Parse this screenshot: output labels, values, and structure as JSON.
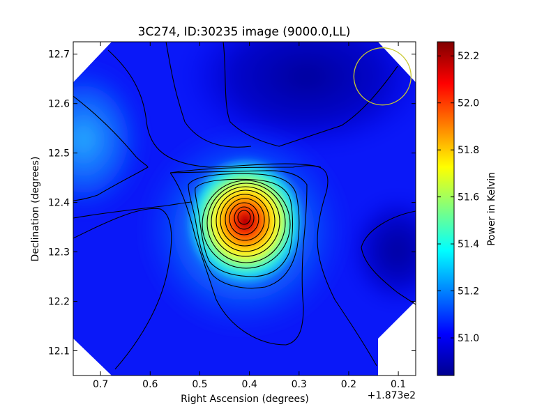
{
  "chart_data": {
    "type": "heatmap",
    "title": "3C274, ID:30235 image (9000.0,LL)",
    "xlabel": "Right Ascension (degrees)",
    "ylabel": "Declination (degrees)",
    "x_offset_label": "+1.873e2",
    "xlim": [
      0.755,
      0.065
    ],
    "ylim": [
      12.05,
      12.725
    ],
    "x_ticks": [
      0.7,
      0.6,
      0.5,
      0.4,
      0.3,
      0.2,
      0.1
    ],
    "x_tick_labels": [
      "0.7",
      "0.6",
      "0.5",
      "0.4",
      "0.3",
      "0.2",
      "0.1"
    ],
    "y_ticks": [
      12.1,
      12.2,
      12.3,
      12.4,
      12.5,
      12.6,
      12.7
    ],
    "y_tick_labels": [
      "12.1",
      "12.2",
      "12.3",
      "12.4",
      "12.5",
      "12.6",
      "12.7"
    ],
    "colorbar": {
      "label": "Power in Kelvin",
      "range": [
        50.84,
        52.26
      ],
      "ticks": [
        51.0,
        51.2,
        51.4,
        51.6,
        51.8,
        52.0,
        52.2
      ],
      "tick_labels": [
        "51.0",
        "51.2",
        "51.4",
        "51.6",
        "51.8",
        "52.0",
        "52.2"
      ],
      "colormap": "jet"
    },
    "peak": {
      "x": 0.405,
      "y": 12.37,
      "value": 52.2
    },
    "beam_circle": {
      "x": 0.132,
      "y": 12.655,
      "color": "#c8c832"
    },
    "grid": false
  }
}
